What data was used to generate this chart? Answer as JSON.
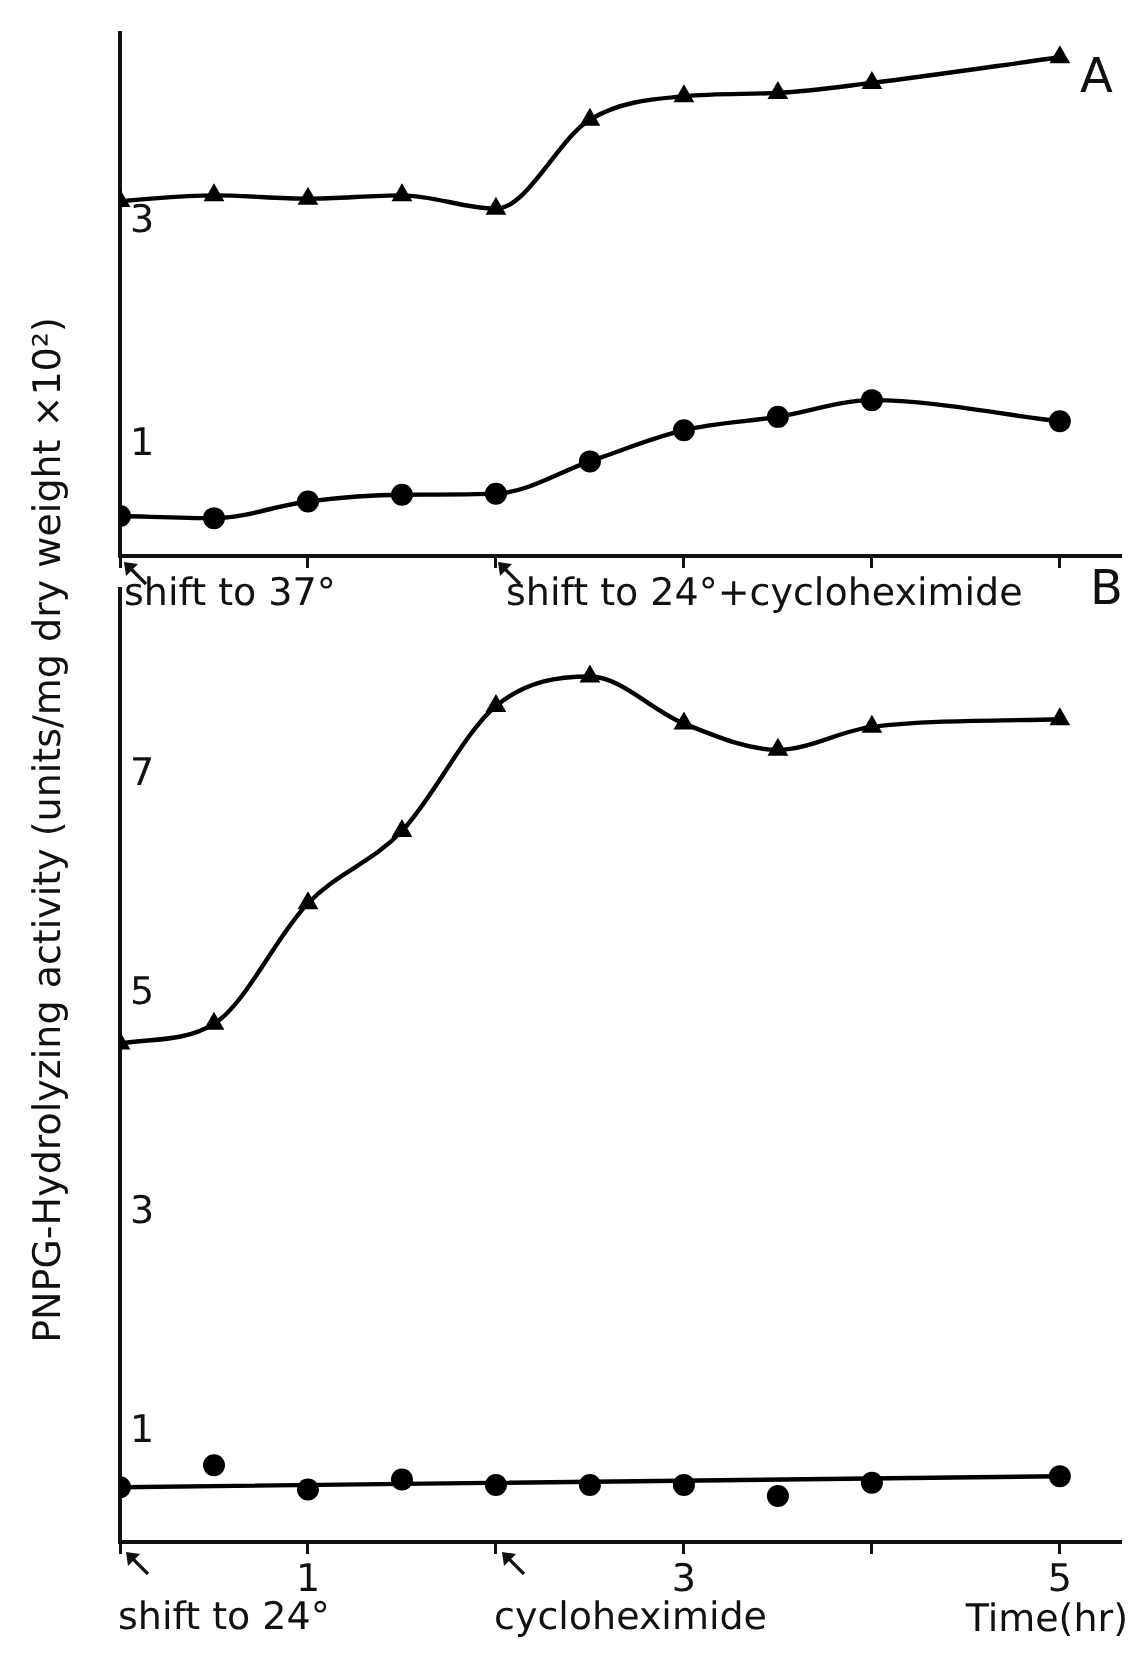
{
  "chart_data": [
    {
      "type": "line",
      "xlim": [
        0,
        5.32
      ],
      "xticks": [
        0,
        1,
        2,
        3,
        4,
        5
      ],
      "ylim": [
        0,
        4.7
      ],
      "yticks": [
        1,
        3
      ],
      "tick_labels": "y",
      "annotations": [
        "A",
        "shift to 37°",
        "shift to 24°+cycloheximide"
      ],
      "series": [
        {
          "type": "line",
          "color": "#000000",
          "marker": "triangle",
          "x": [
            0,
            0.5,
            1,
            1.5,
            2,
            2.5,
            3,
            3.5,
            4,
            5
          ],
          "values": [
            3.19,
            3.24,
            3.21,
            3.24,
            3.12,
            3.92,
            4.13,
            4.16,
            4.25,
            4.48
          ]
        },
        {
          "type": "line",
          "color": "#000000",
          "marker": "circle",
          "x": [
            0,
            0.5,
            1,
            1.5,
            2,
            2.5,
            3,
            3.5,
            4,
            5
          ],
          "values": [
            0.36,
            0.34,
            0.49,
            0.55,
            0.56,
            0.85,
            1.13,
            1.25,
            1.4,
            1.21
          ]
        }
      ]
    },
    {
      "type": "line",
      "xlabel": "Time(hr)",
      "ylabel": "PNPG-Hydrolyzing activity  (units/mg dry weight ×10²)",
      "xlim": [
        0,
        5.32
      ],
      "xticks": [
        {
          "value": 0,
          "label": null
        },
        1,
        {
          "value": 2,
          "label": null
        },
        3,
        {
          "value": 4,
          "label": null
        },
        5
      ],
      "ylim": [
        0,
        8.7
      ],
      "yticks": [
        1,
        3,
        5,
        7
      ],
      "annotations": [
        "B",
        "shift to 24°",
        "cycloheximide"
      ],
      "series": [
        {
          "type": "line",
          "color": "#000000",
          "marker": "triangle",
          "x": [
            0,
            0.5,
            1,
            1.5,
            2,
            2.5,
            3,
            3.5,
            4,
            5
          ],
          "values": [
            4.55,
            4.73,
            5.83,
            6.49,
            7.63,
            7.9,
            7.47,
            7.23,
            7.44,
            7.51
          ]
        },
        {
          "type": "scatter",
          "color": "#000000",
          "marker": "circle",
          "x": [
            0,
            0.5,
            1,
            1.5,
            2,
            2.5,
            3,
            3.5,
            4,
            5
          ],
          "values": [
            0.5,
            0.7,
            0.48,
            0.57,
            0.52,
            0.52,
            0.52,
            0.42,
            0.54,
            0.6
          ]
        },
        {
          "type": "line",
          "color": "#000000",
          "marker": "none",
          "x": [
            0,
            5
          ],
          "values": [
            0.5,
            0.6
          ]
        }
      ]
    }
  ]
}
